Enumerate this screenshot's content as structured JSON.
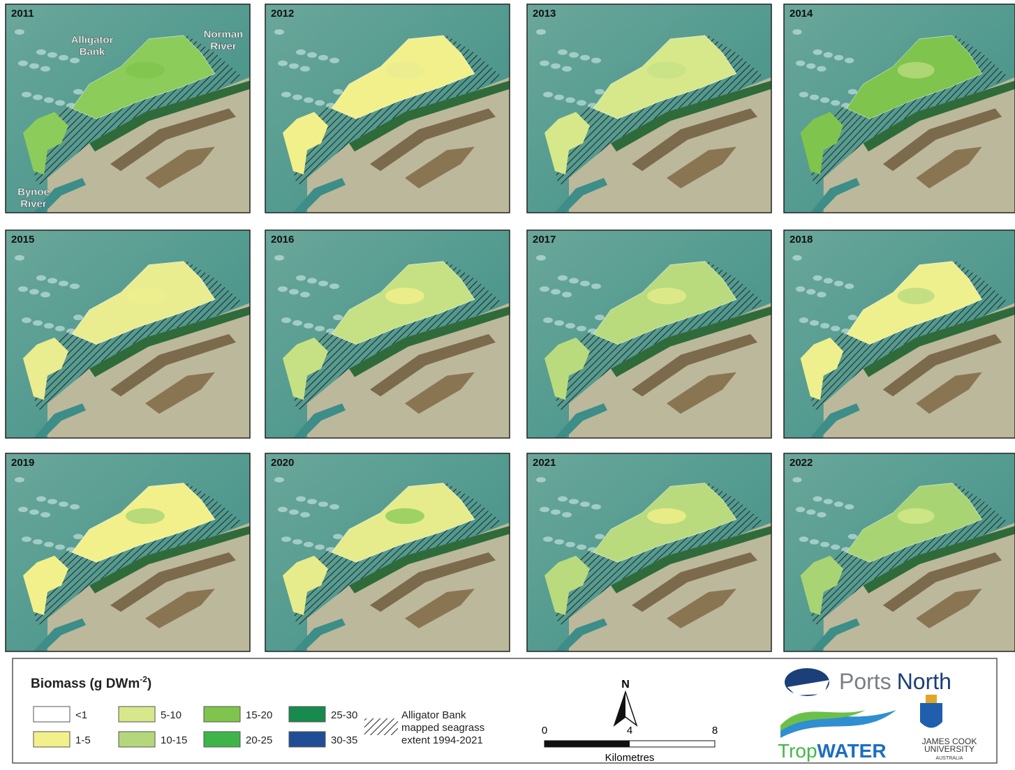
{
  "panels": [
    {
      "year": "2011"
    },
    {
      "year": "2012"
    },
    {
      "year": "2013"
    },
    {
      "year": "2014"
    },
    {
      "year": "2015"
    },
    {
      "year": "2016"
    },
    {
      "year": "2017"
    },
    {
      "year": "2018"
    },
    {
      "year": "2019"
    },
    {
      "year": "2020"
    },
    {
      "year": "2021"
    },
    {
      "year": "2022"
    }
  ],
  "place_labels": {
    "alligator_bank": [
      "Alligator",
      "Bank"
    ],
    "norman_river": [
      "Norman",
      "River"
    ],
    "bynoe_river": [
      "Bynoe",
      "River"
    ]
  },
  "legend": {
    "title": {
      "text": "Biomass (g DWm",
      "superscript": "-2",
      "suffix": ")"
    },
    "classes": [
      {
        "label": "<1",
        "color": "#ffffff"
      },
      {
        "label": "1-5",
        "color": "#f2f08a"
      },
      {
        "label": "5-10",
        "color": "#d6e88a"
      },
      {
        "label": "10-15",
        "color": "#b5d77c"
      },
      {
        "label": "15-20",
        "color": "#7fc44c"
      },
      {
        "label": "20-25",
        "color": "#3fb549"
      },
      {
        "label": "25-30",
        "color": "#178a4e"
      },
      {
        "label": "30-35",
        "color": "#1f4e96"
      }
    ],
    "extent_label": [
      "Alligator Bank",
      "mapped seagrass",
      "extent 1994-2021"
    ]
  },
  "scale_bar": {
    "north": "N",
    "ticks": [
      0,
      4,
      8
    ],
    "unit": "Kilometres"
  },
  "logos": {
    "ports_north": [
      "Ports",
      "North"
    ],
    "tropwater": [
      "Trop",
      "WATER"
    ],
    "jcu": [
      "JAMES COOK",
      "UNIVERSITY",
      "AUSTRALIA"
    ]
  }
}
